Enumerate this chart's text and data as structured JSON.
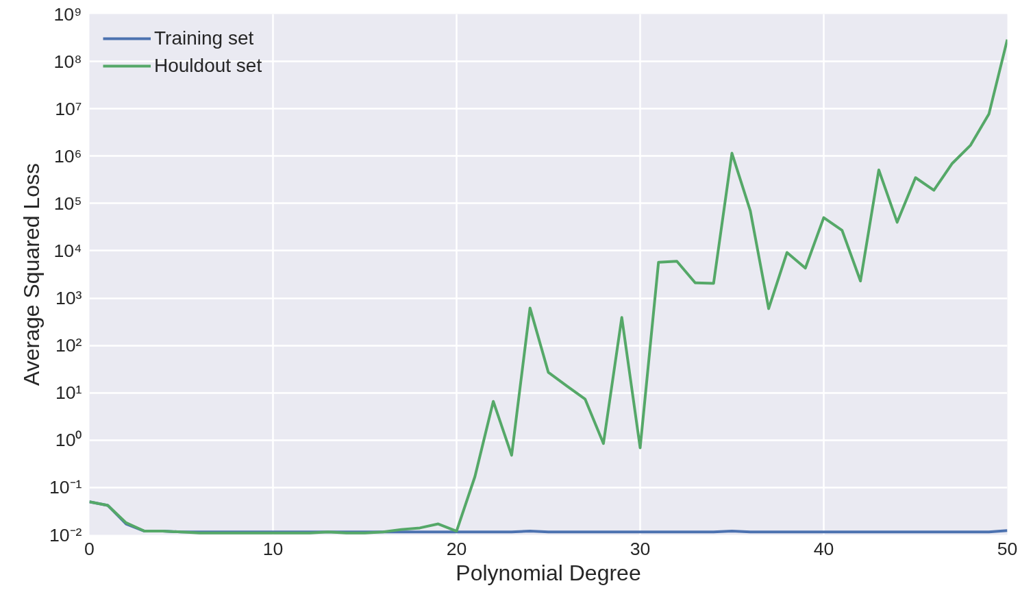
{
  "chart_data": {
    "type": "line",
    "xlabel": "Polynomial Degree",
    "ylabel": "Average Squared Loss",
    "log": "y",
    "grid": true,
    "legend": "top left",
    "x": [
      0,
      1,
      2,
      3,
      4,
      5,
      6,
      7,
      8,
      9,
      10,
      11,
      12,
      13,
      14,
      15,
      16,
      17,
      18,
      19,
      20,
      21,
      22,
      23,
      24,
      25,
      26,
      27,
      28,
      29,
      30,
      31,
      32,
      33,
      34,
      35,
      36,
      37,
      38,
      39,
      40,
      41,
      42,
      43,
      44,
      45,
      46,
      47,
      48,
      49,
      50
    ],
    "xlim": [
      0,
      50
    ],
    "xticks": [
      0,
      10,
      20,
      30,
      40,
      50
    ],
    "ylim": [
      0.01,
      1000000000
    ],
    "yticks": [
      {
        "value": 0.01,
        "label": "10⁻²"
      },
      {
        "value": 0.1,
        "label": "10⁻¹"
      },
      {
        "value": 1,
        "label": "10⁰"
      },
      {
        "value": 10,
        "label": "10¹"
      },
      {
        "value": 100,
        "label": "10²"
      },
      {
        "value": 1000,
        "label": "10³"
      },
      {
        "value": 10000,
        "label": "10⁴"
      },
      {
        "value": 100000,
        "label": "10⁵"
      },
      {
        "value": 1000000,
        "label": "10⁶"
      },
      {
        "value": 10000000,
        "label": "10⁷"
      },
      {
        "value": 100000000,
        "label": "10⁸"
      },
      {
        "value": 1000000000,
        "label": "10⁹"
      }
    ],
    "series": [
      {
        "name": "Training set",
        "color": "#4c72b0",
        "values": [
          0.05,
          0.042,
          0.017,
          0.012,
          0.012,
          0.0115,
          0.0115,
          0.0115,
          0.0115,
          0.0115,
          0.0115,
          0.0115,
          0.0115,
          0.0115,
          0.0115,
          0.0115,
          0.0115,
          0.0115,
          0.0115,
          0.0115,
          0.0115,
          0.0115,
          0.0115,
          0.0115,
          0.012,
          0.0115,
          0.0115,
          0.0115,
          0.0115,
          0.0115,
          0.0115,
          0.0115,
          0.0115,
          0.0115,
          0.0115,
          0.012,
          0.0115,
          0.0115,
          0.0115,
          0.0115,
          0.0115,
          0.0115,
          0.0115,
          0.0115,
          0.0115,
          0.0115,
          0.0115,
          0.0115,
          0.0115,
          0.0115,
          0.0123
        ]
      },
      {
        "name": "Houldout set",
        "color": "#55a868",
        "values": [
          0.05,
          0.042,
          0.018,
          0.012,
          0.012,
          0.0115,
          0.011,
          0.011,
          0.011,
          0.011,
          0.011,
          0.011,
          0.011,
          0.0115,
          0.011,
          0.011,
          0.0115,
          0.013,
          0.014,
          0.017,
          0.012,
          0.17,
          6.6,
          0.48,
          620,
          27,
          14,
          7.4,
          0.85,
          390,
          0.69,
          5700,
          6000,
          2100,
          2050,
          1150000,
          70000,
          600,
          9200,
          4300,
          50000,
          27000,
          2300,
          510000,
          40000,
          350000,
          190000,
          700000,
          1700000,
          7800000,
          290000000
        ]
      }
    ]
  }
}
